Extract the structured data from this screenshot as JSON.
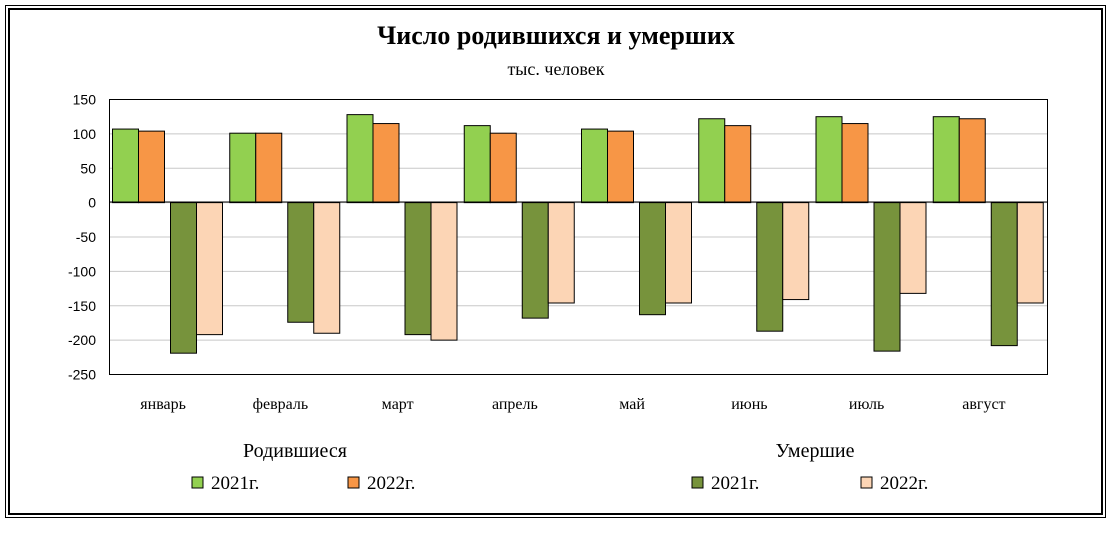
{
  "chart_data": {
    "type": "bar",
    "title": "Число родившихся и умерших",
    "subtitle": "тыс. человек",
    "ylim": [
      -250,
      150
    ],
    "yticks": [
      150,
      100,
      50,
      0,
      -50,
      -100,
      -150,
      -200,
      -250
    ],
    "ytick_labels": [
      "150",
      "100",
      "50",
      "0",
      "-50",
      "-100",
      "-150",
      "-200",
      "-250"
    ],
    "categories": [
      "январь",
      "февраль",
      "март",
      "апрель",
      "май",
      "июнь",
      "июль",
      "август"
    ],
    "grid": true,
    "groups": [
      {
        "title": "Родившиеся",
        "series": [
          {
            "name": "2021г.",
            "color": "#92d050",
            "values": [
              107,
              101,
              128,
              112,
              107,
              122,
              125,
              125
            ]
          },
          {
            "name": "2022г.",
            "color": "#f79646",
            "values": [
              104,
              101,
              115,
              101,
              104,
              112,
              115,
              122
            ]
          }
        ]
      },
      {
        "title": "Умершие",
        "series": [
          {
            "name": "2021г.",
            "color": "#77933c",
            "values": [
              -219,
              -174,
              -192,
              -168,
              -163,
              -187,
              -216,
              -208
            ]
          },
          {
            "name": "2022г.",
            "color": "#fcd5b5",
            "values": [
              -192,
              -190,
              -200,
              -146,
              -146,
              -141,
              -132,
              -146
            ]
          }
        ]
      }
    ]
  }
}
